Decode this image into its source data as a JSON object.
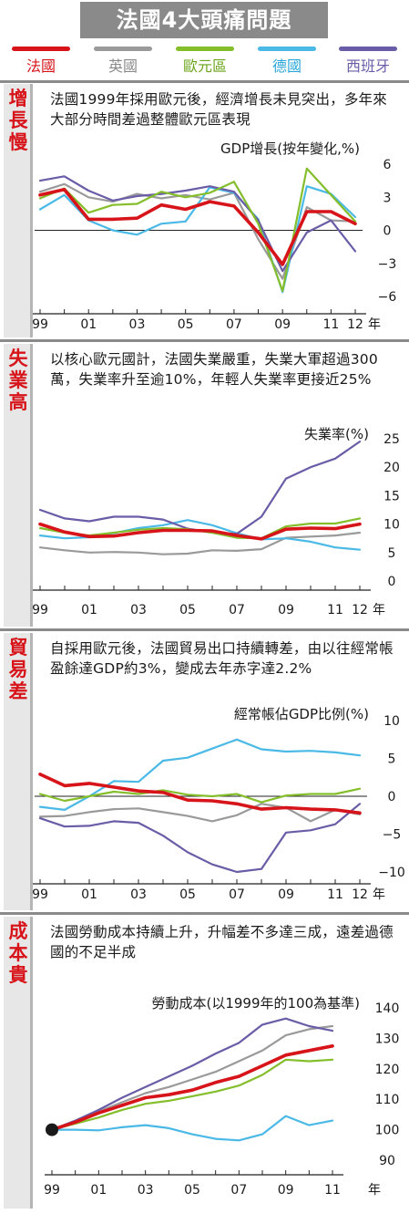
{
  "header": {
    "title": "法國4大頭痛問題"
  },
  "legend": [
    {
      "name": "法國",
      "color": "#d7141a"
    },
    {
      "name": "英國",
      "color": "#9a9a9a"
    },
    {
      "name": "歐元區",
      "color": "#84be2a"
    },
    {
      "name": "德國",
      "color": "#4ab9e6"
    },
    {
      "name": "西班牙",
      "color": "#6a5ca6"
    }
  ],
  "panels": [
    {
      "label": "增長慢",
      "text": "法國1999年採用歐元後，經濟增長未見突出，多年來大部分時間差過整體歐元區表現"
    },
    {
      "label": "失業高",
      "text": "以核心歐元國計，法國失業嚴重，失業大軍超過300萬，失業率升至逾10%，年輕人失業率更接近25%"
    },
    {
      "label": "貿易差",
      "text": "自採用歐元後，法國貿易出口持續轉差，由以往經常帳盈餘達GDP約3%，變成去年赤字達2.2%"
    },
    {
      "label": "成本貴",
      "text": "法國勞動成本持續上升，升幅差不多達三成，遠差過德國的不足半成"
    }
  ],
  "chart_data": [
    {
      "type": "line",
      "title": "GDP增長(按年變化,%)",
      "x": [
        1999,
        2000,
        2001,
        2002,
        2003,
        2004,
        2005,
        2006,
        2007,
        2008,
        2009,
        2010,
        2011,
        2012
      ],
      "x_tick_labels": [
        "99",
        "01",
        "03",
        "05",
        "07",
        "09",
        "11",
        "12"
      ],
      "x_unit_label": "年",
      "y_ticks": [
        6,
        3,
        0,
        -3,
        -6
      ],
      "ylim": [
        -6,
        6
      ],
      "series": [
        {
          "name": "法國",
          "color": "#d7141a",
          "values": [
            3.2,
            3.7,
            1.0,
            1.0,
            1.1,
            2.3,
            1.9,
            2.6,
            2.2,
            -0.2,
            -3.1,
            1.7,
            1.7,
            0.6
          ]
        },
        {
          "name": "英國",
          "color": "#9a9a9a",
          "values": [
            3.5,
            4.2,
            3.0,
            2.6,
            3.3,
            2.9,
            3.2,
            2.8,
            3.4,
            -0.8,
            -4.4,
            2.1,
            0.9,
            0.8
          ]
        },
        {
          "name": "歐元區",
          "color": "#84be2a",
          "values": [
            2.9,
            3.8,
            1.6,
            2.3,
            2.4,
            3.5,
            3.0,
            3.4,
            4.4,
            0.6,
            -5.5,
            5.6,
            3.2,
            0.8
          ]
        },
        {
          "name": "德國",
          "color": "#4ab9e6",
          "values": [
            1.9,
            3.2,
            0.9,
            0.0,
            -0.4,
            0.6,
            0.8,
            3.9,
            3.4,
            1.0,
            -5.6,
            4.0,
            3.3,
            1.2
          ]
        },
        {
          "name": "西班牙",
          "color": "#6a5ca6",
          "values": [
            4.5,
            4.9,
            3.6,
            2.7,
            3.1,
            3.3,
            3.6,
            4.0,
            3.5,
            0.9,
            -3.7,
            -0.2,
            0.9,
            -1.9
          ]
        }
      ]
    },
    {
      "type": "line",
      "title": "失業率(%)",
      "x": [
        1999,
        2000,
        2001,
        2002,
        2003,
        2004,
        2005,
        2006,
        2007,
        2008,
        2009,
        2010,
        2011,
        2012
      ],
      "x_tick_labels": [
        "99",
        "01",
        "03",
        "05",
        "07",
        "09",
        "11",
        "12"
      ],
      "x_unit_label": "年",
      "y_ticks": [
        25,
        20,
        15,
        10,
        5,
        0
      ],
      "ylim": [
        0,
        25
      ],
      "series": [
        {
          "name": "法國",
          "color": "#d7141a",
          "values": [
            10.0,
            8.6,
            7.8,
            7.9,
            8.5,
            8.9,
            8.9,
            8.8,
            8.0,
            7.4,
            9.1,
            9.3,
            9.2,
            10.0
          ]
        },
        {
          "name": "英國",
          "color": "#9a9a9a",
          "values": [
            5.9,
            5.4,
            5.0,
            5.1,
            5.0,
            4.7,
            4.8,
            5.4,
            5.3,
            5.6,
            7.6,
            7.8,
            8.0,
            8.5
          ]
        },
        {
          "name": "歐元區",
          "color": "#84be2a",
          "values": [
            9.3,
            8.5,
            8.0,
            8.5,
            9.0,
            9.3,
            9.1,
            8.5,
            7.6,
            7.5,
            9.6,
            10.1,
            10.1,
            11.0
          ]
        },
        {
          "name": "德國",
          "color": "#4ab9e6",
          "values": [
            8.0,
            7.5,
            7.7,
            8.4,
            9.3,
            9.8,
            10.7,
            9.8,
            8.4,
            7.3,
            7.5,
            6.9,
            5.9,
            5.5
          ]
        },
        {
          "name": "西班牙",
          "color": "#6a5ca6",
          "values": [
            12.5,
            11.0,
            10.5,
            11.3,
            11.3,
            10.8,
            9.2,
            8.5,
            8.3,
            11.3,
            18.0,
            20.0,
            21.5,
            24.5
          ]
        }
      ]
    },
    {
      "type": "line",
      "title": "經常帳佔GDP比例(%)",
      "x": [
        1999,
        2000,
        2001,
        2002,
        2003,
        2004,
        2005,
        2006,
        2007,
        2008,
        2009,
        2010,
        2011,
        2012
      ],
      "x_tick_labels": [
        "99",
        "01",
        "03",
        "05",
        "07",
        "09",
        "11",
        "12"
      ],
      "x_unit_label": "年",
      "y_ticks": [
        10,
        5,
        0,
        -5,
        -10
      ],
      "ylim": [
        -10,
        10
      ],
      "series": [
        {
          "name": "法國",
          "color": "#d7141a",
          "values": [
            2.9,
            1.4,
            1.7,
            1.2,
            0.7,
            0.5,
            -0.5,
            -0.6,
            -1.0,
            -1.7,
            -1.5,
            -1.7,
            -1.8,
            -2.2
          ]
        },
        {
          "name": "英國",
          "color": "#9a9a9a",
          "values": [
            -2.7,
            -2.6,
            -2.1,
            -1.7,
            -1.6,
            -2.1,
            -2.6,
            -3.3,
            -2.5,
            -1.0,
            -1.5,
            -3.3,
            -1.8,
            -2.4
          ]
        },
        {
          "name": "歐元區",
          "color": "#84be2a",
          "values": [
            0.3,
            -0.6,
            0.0,
            0.6,
            0.3,
            0.8,
            0.2,
            0.0,
            0.3,
            -0.8,
            0.1,
            0.3,
            0.3,
            1.0
          ]
        },
        {
          "name": "德國",
          "color": "#4ab9e6",
          "values": [
            -1.4,
            -1.8,
            0.0,
            2.0,
            1.9,
            4.7,
            5.1,
            6.3,
            7.5,
            6.2,
            5.9,
            6.0,
            5.8,
            5.4
          ]
        },
        {
          "name": "西班牙",
          "color": "#6a5ca6",
          "values": [
            -2.9,
            -4.0,
            -3.9,
            -3.3,
            -3.5,
            -5.2,
            -7.4,
            -9.0,
            -10.0,
            -9.6,
            -4.8,
            -4.5,
            -3.7,
            -1.0
          ]
        }
      ]
    },
    {
      "type": "line",
      "title": "勞動成本(以1999年的100為基準)",
      "x": [
        1999,
        2000,
        2001,
        2002,
        2003,
        2004,
        2005,
        2006,
        2007,
        2008,
        2009,
        2010,
        2011
      ],
      "x_tick_labels": [
        "99",
        "01",
        "03",
        "05",
        "07",
        "09",
        "11"
      ],
      "x_unit_label": "年",
      "y_ticks": [
        140,
        130,
        120,
        110,
        100,
        90
      ],
      "ylim": [
        90,
        140
      ],
      "base_marker": {
        "x": 1999,
        "y": 100
      },
      "series": [
        {
          "name": "法國",
          "color": "#d7141a",
          "values": [
            100,
            102.5,
            105.5,
            108,
            110.5,
            111.5,
            113,
            115.5,
            117.5,
            121,
            124.5,
            126,
            127.5
          ]
        },
        {
          "name": "英國",
          "color": "#9a9a9a",
          "values": [
            100,
            103,
            106,
            109,
            112,
            114,
            116.5,
            119,
            122.5,
            126,
            131,
            133,
            134
          ]
        },
        {
          "name": "歐元區",
          "color": "#84be2a",
          "values": [
            100,
            102,
            104,
            106.5,
            108.5,
            109.5,
            111,
            112.5,
            114.5,
            118,
            123,
            122.5,
            123
          ]
        },
        {
          "name": "德國",
          "color": "#4ab9e6",
          "values": [
            100,
            100,
            99.8,
            100.8,
            101.5,
            100.5,
            98.5,
            97,
            96.5,
            98.5,
            104.5,
            101.5,
            103
          ]
        },
        {
          "name": "西班牙",
          "color": "#6a5ca6",
          "values": [
            100,
            103,
            106.5,
            110.5,
            114,
            117.5,
            121,
            125,
            128.5,
            134.5,
            136.5,
            134,
            132.5
          ]
        }
      ]
    }
  ]
}
